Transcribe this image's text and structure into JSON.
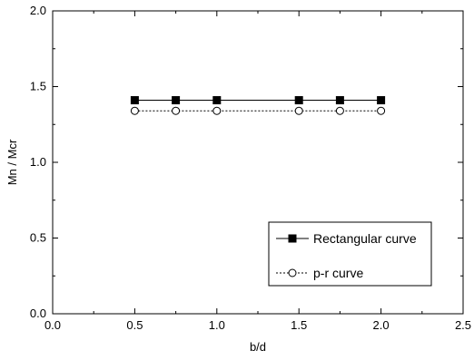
{
  "chart_data": {
    "type": "line",
    "xlabel": "b/d",
    "ylabel": "Mn / Mcr",
    "xlim": [
      0.0,
      2.5
    ],
    "ylim": [
      0.0,
      2.0
    ],
    "x_ticks": [
      "0.0",
      "0.5",
      "1.0",
      "1.5",
      "2.0",
      "2.5"
    ],
    "y_ticks": [
      "0.0",
      "0.5",
      "1.0",
      "1.5",
      "2.0"
    ],
    "grid": false,
    "legend_position": "bottom-right",
    "series": [
      {
        "name": "Rectangular curve",
        "marker": "filled-square",
        "line": "solid",
        "color": "#000000",
        "x": [
          0.5,
          0.75,
          1.0,
          1.5,
          1.75,
          2.0
        ],
        "y": [
          1.41,
          1.41,
          1.41,
          1.41,
          1.41,
          1.41
        ]
      },
      {
        "name": "p-r curve",
        "marker": "open-circle",
        "line": "dotted",
        "color": "#000000",
        "x": [
          0.5,
          0.75,
          1.0,
          1.5,
          1.75,
          2.0
        ],
        "y": [
          1.34,
          1.34,
          1.34,
          1.34,
          1.34,
          1.34
        ]
      }
    ]
  }
}
